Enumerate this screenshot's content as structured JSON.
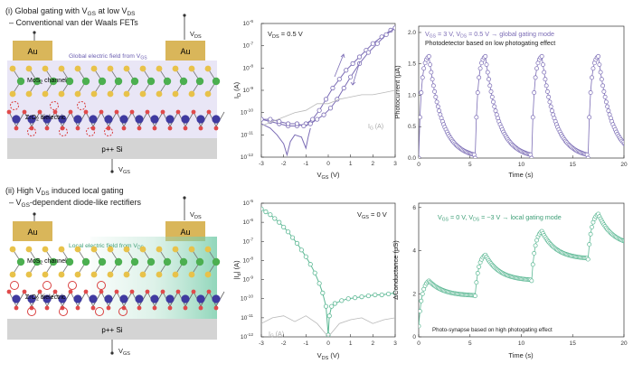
{
  "colors": {
    "purple": "#7b6cb5",
    "green": "#5cb894",
    "gray": "#b8b8b8",
    "gold": "#d9b65a",
    "substrate": "#d4d4d4"
  },
  "schematic_top": {
    "title_line1": "(i) Global gating with V",
    "title_sub1": "GS",
    "title_line1b": " at low V",
    "title_sub1b": "DS",
    "title_line2": "– Conventional van der Waals FETs",
    "electrode_left": "Au",
    "electrode_right": "Au",
    "vds_label": "V",
    "vds_sub": "DS",
    "field_label": "Global electric field from V",
    "field_sub": "GS",
    "channel_label": "MoS",
    "channel_sub": "2",
    "channel_label_end": " channel",
    "dielectric_label": "ZrO",
    "dielectric_sub": "2",
    "dielectric_label_end": " dielectric",
    "substrate_label": "p++ Si",
    "vgs_label": "V",
    "vgs_sub": "GS"
  },
  "schematic_bottom": {
    "title_line1": "(ii) High V",
    "title_sub1": "DS",
    "title_line1b": " induced local gating",
    "title_line2": "– V",
    "title_sub2": "GS",
    "title_line2b": "-dependent diode-like rectifiers",
    "electrode_left": "Au",
    "electrode_right": "Au",
    "vds_label": "V",
    "vds_sub": "DS",
    "field_label": "Local electric field from V",
    "field_sub": "DS",
    "channel_label": "MoS",
    "channel_sub": "2",
    "channel_label_end": " channel",
    "dielectric_label": "ZrO",
    "dielectric_sub": "2",
    "dielectric_label_end": " dielectric",
    "substrate_label": "p++ Si",
    "vgs_label": "V",
    "vgs_sub": "GS"
  },
  "chart_data": [
    {
      "id": "transfer-top",
      "type": "line",
      "annotation": "V",
      "annotation_sub": "DS",
      "annotation_end": " = 0.5 V",
      "xlabel": "V",
      "xlabel_sub": "GS",
      "xlabel_end": " (V)",
      "ylabel": "I",
      "ylabel_sub": "D",
      "ylabel_end": " (A)",
      "xlim": [
        -3,
        3
      ],
      "ylim_log10": [
        -12,
        -6
      ],
      "xticks": [
        "-3",
        "-2",
        "-1",
        "0",
        "1",
        "2",
        "3"
      ],
      "yticks": [
        "10",
        "10",
        "10",
        "10",
        "10",
        "10",
        "10"
      ],
      "ytick_exp": [
        "-12",
        "-11",
        "-10",
        "-9",
        "-8",
        "-7",
        "-6"
      ],
      "leak_label": "I",
      "leak_sub": "G",
      "leak_end": " (A)",
      "series": [
        {
          "name": "forward",
          "color": "#7b6cb5",
          "x": [
            -3,
            -2.6,
            -2.2,
            -1.8,
            -1.4,
            -1.0,
            -0.7,
            -0.4,
            -0.1,
            0.2,
            0.5,
            0.8,
            1.1,
            1.4,
            1.7,
            2.0,
            2.4,
            2.8,
            3.0
          ],
          "log10y": [
            -10.3,
            -10.4,
            -10.5,
            -10.6,
            -10.6,
            -10.5,
            -10.3,
            -9.9,
            -9.4,
            -8.9,
            -8.5,
            -8.1,
            -7.8,
            -7.5,
            -7.2,
            -6.9,
            -6.6,
            -6.3,
            -6.2
          ]
        },
        {
          "name": "reverse",
          "color": "#7b6cb5",
          "x": [
            3.0,
            2.6,
            2.2,
            1.8,
            1.4,
            1.0,
            0.7,
            0.4,
            0.1,
            -0.2,
            -0.5,
            -0.8,
            -1.1,
            -1.4,
            -1.8,
            -2.2,
            -2.6,
            -3.0
          ],
          "log10y": [
            -6.2,
            -6.5,
            -6.9,
            -7.3,
            -7.8,
            -8.4,
            -8.9,
            -9.4,
            -9.8,
            -10.1,
            -10.3,
            -10.5,
            -10.6,
            -10.5,
            -10.5,
            -10.4,
            -10.3,
            -10.3
          ]
        },
        {
          "name": "dip",
          "color": "#7b6cb5",
          "x": [
            -3.0,
            -2.6,
            -2.3,
            -2.0,
            -1.85,
            -1.7,
            -1.5,
            -1.2,
            -1.0,
            -0.9,
            -0.8
          ],
          "log10y": [
            -10.5,
            -10.7,
            -11.0,
            -11.4,
            -11.9,
            -11.3,
            -11.0,
            -11.1,
            -11.6,
            -11.1,
            -10.7
          ]
        },
        {
          "name": "leakage",
          "color": "#b8b8b8",
          "x": [
            -3.0,
            -2.5,
            -2.0,
            -1.5,
            -1.0,
            -0.5,
            0.0,
            0.5,
            1.0,
            1.5,
            2.0,
            2.5,
            3.0
          ],
          "log10y": [
            -10.6,
            -10.4,
            -10.2,
            -10.0,
            -9.9,
            -9.6,
            -9.6,
            -9.4,
            -9.3,
            -9.2,
            -9.2,
            -9.1,
            -9.0
          ]
        }
      ]
    },
    {
      "id": "photocurrent-top",
      "type": "line",
      "annotation": "V",
      "annotation_sub": "GS",
      "annotation_mid": " = 3 V, V",
      "annotation_sub2": "DS",
      "annotation_end": " = 0.5 V → global gating mode",
      "subtitle": "Photodetector based on low photogating effect",
      "xlabel": "Time (s)",
      "ylabel": "Photocurrent (μA)",
      "xlim": [
        0,
        20
      ],
      "ylim": [
        0,
        2.1
      ],
      "xticks": [
        "0",
        "5",
        "10",
        "15",
        "20"
      ],
      "yticks": [
        "0.0",
        "0.5",
        "1.0",
        "1.5",
        "2.0"
      ],
      "pulse_starts": [
        0,
        5.5,
        11.0,
        16.5
      ],
      "pulse_on": 1.0,
      "pulse_peak": 1.62,
      "color": "#7b6cb5"
    },
    {
      "id": "transfer-bottom",
      "type": "line",
      "annotation": "V",
      "annotation_sub": "GS",
      "annotation_end": " = 0 V",
      "xlabel": "V",
      "xlabel_sub": "DS",
      "xlabel_end": " (V)",
      "ylabel": "|I",
      "ylabel_sub": "d",
      "ylabel_end": "| (A)",
      "xlim": [
        -3,
        3
      ],
      "ylim_log10": [
        -12,
        -5
      ],
      "xticks": [
        "-3",
        "-2",
        "-1",
        "0",
        "1",
        "2",
        "3"
      ],
      "yticks": [
        "10",
        "10",
        "10",
        "10",
        "10",
        "10",
        "10",
        "10"
      ],
      "ytick_exp": [
        "-12",
        "-11",
        "-10",
        "-9",
        "-8",
        "-7",
        "-6",
        "-5"
      ],
      "leak_label": "I",
      "leak_sub": "G",
      "leak_end": " (A)",
      "series": [
        {
          "name": "diode",
          "color": "#5cb894",
          "x": [
            -3.0,
            -2.8,
            -2.6,
            -2.4,
            -2.2,
            -2.0,
            -1.8,
            -1.6,
            -1.4,
            -1.2,
            -1.0,
            -0.8,
            -0.6,
            -0.4,
            -0.25,
            -0.1,
            0.0,
            0.05,
            0.15,
            0.3,
            0.6,
            0.9,
            1.2,
            1.5,
            1.8,
            2.1,
            2.4,
            2.7,
            3.0
          ],
          "log10y": [
            -5.3,
            -5.45,
            -5.6,
            -5.8,
            -6.0,
            -6.25,
            -6.5,
            -6.8,
            -7.1,
            -7.45,
            -7.8,
            -8.2,
            -8.65,
            -9.2,
            -9.7,
            -10.4,
            -11.9,
            -10.9,
            -10.4,
            -10.25,
            -10.1,
            -10.0,
            -9.95,
            -9.9,
            -9.85,
            -9.8,
            -9.8,
            -9.75,
            -9.7
          ]
        },
        {
          "name": "leakage",
          "color": "#b8b8b8",
          "x": [
            -3.0,
            -2.5,
            -2.0,
            -1.5,
            -1.0,
            -0.5,
            0.0,
            0.5,
            1.0,
            1.5,
            2.0,
            2.5,
            3.0
          ],
          "log10y": [
            -11.3,
            -11.0,
            -10.9,
            -11.2,
            -10.9,
            -11.3,
            -12.0,
            -11.3,
            -11.1,
            -11.0,
            -11.3,
            -11.1,
            -11.0
          ]
        }
      ]
    },
    {
      "id": "conductance-bottom",
      "type": "line",
      "annotation": "V",
      "annotation_sub": "GS",
      "annotation_mid": " = 0 V, V",
      "annotation_sub2": "DS",
      "annotation_end": " = −3 V → local gating mode",
      "subtitle": "Photo-synapse based on high photogating effect",
      "xlabel": "Time (s)",
      "ylabel": "ΔConductance (μS)",
      "xlim": [
        0,
        20
      ],
      "ylim": [
        0,
        6.2
      ],
      "xticks": [
        "0",
        "5",
        "10",
        "15",
        "20"
      ],
      "yticks": [
        "0",
        "2",
        "4",
        "6"
      ],
      "pulse_starts": [
        0,
        5.5,
        11.0,
        16.5
      ],
      "pulse_on": 1.0,
      "peaks": [
        2.6,
        3.8,
        4.9,
        5.7
      ],
      "color": "#5cb894"
    }
  ]
}
